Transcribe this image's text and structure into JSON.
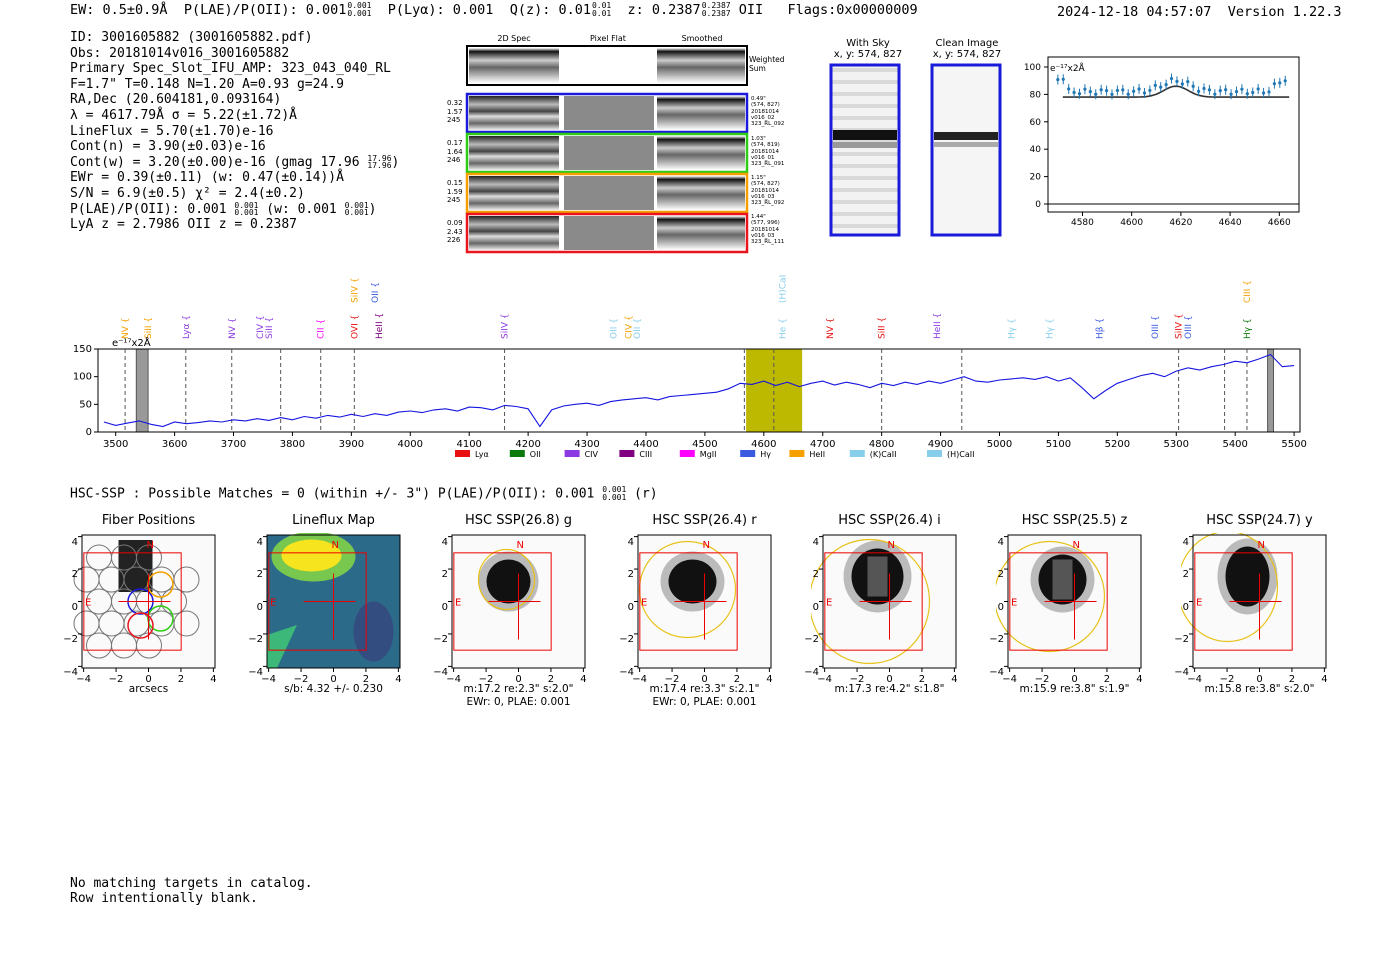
{
  "header": {
    "ew": "EW: 0.5±0.9Å",
    "plae_label": "P(LAE)/P(OII):",
    "plae_val": "0.001",
    "plae_hi": "0.001",
    "plae_lo": "0.001",
    "plya": "P(Lyα): 0.001",
    "qz_label": "Q(z):",
    "qz_val": "0.01",
    "qz_hi": "0.01",
    "qz_lo": "0.01",
    "z_label": "z:",
    "z_val": "0.2387",
    "z_hi": "0.2387",
    "z_lo": "0.2387",
    "z_line": "OII",
    "flags": "Flags:0x00000009",
    "timestamp": "2024-12-18 04:57:07",
    "version": "Version 1.22.3"
  },
  "info": {
    "id": "ID: 3001605882 (3001605882.pdf)",
    "obs": "Obs: 20181014v016_3001605882",
    "primary": "Primary Spec_Slot_IFU_AMP: 323_043_040_RL",
    "fta": "F=1.7\"  T=0.148  N=1.20  A=0.93  g=24.9",
    "radec": "RA,Dec (20.604181,0.093164)",
    "lambda": "λ = 4617.79Å  σ = 5.22(±1.72)Å",
    "lineflux": "LineFlux = 5.70(±1.70)e-16",
    "contn": "Cont(n) = 3.90(±0.03)e-16",
    "contw": "Cont(w) = 3.20(±0.00)e-16 (gmag 17.96",
    "contw_hi": "17.96",
    "contw_lo": "17.96",
    "contw_end": ")",
    "ewr": "EWr = 0.39(±0.11) (w: 0.47(±0.14))Å",
    "sn": "S/N = 6.9(±0.5)  χ² = 2.4(±0.2)",
    "plae_a": "P(LAE)/P(OII): 0.001",
    "plae_hi": "0.001",
    "plae_lo": "0.001",
    "plae_b": "(w: 0.001",
    "plae_b_hi": "0.001",
    "plae_b_lo": "0.001",
    "plae_end": ")",
    "lyaz": "LyA z = 2.7986  OII z = 0.2387"
  },
  "spec2d": {
    "col_labels": [
      "2D Spec",
      "Pixel Flat",
      "Smoothed"
    ],
    "weighted": "Weighted Sum",
    "rows": [
      {
        "a": "0.32",
        "b": "1.57",
        "c": "245",
        "info": [
          "0.49\"",
          "(574, 827)",
          "20181014",
          "v016_02",
          "323_RL_092"
        ],
        "color": "#1a1adb"
      },
      {
        "a": "0.17",
        "b": "1.64",
        "c": "246",
        "info": [
          "1.03\"",
          "(574, 819)",
          "20181014",
          "v016_01",
          "323_RL_091"
        ],
        "color": "#2ecc14"
      },
      {
        "a": "0.15",
        "b": "1.59",
        "c": "245",
        "info": [
          "1.15\"",
          "(574, 827)",
          "20181014",
          "v016_03",
          "323_RL_092"
        ],
        "color": "#f5a000"
      },
      {
        "a": "0.09",
        "b": "2.43",
        "c": "226",
        "info": [
          "1.44\"",
          "(577, 996)",
          "20181014",
          "v016_03",
          "323_RL_111"
        ],
        "color": "#e8141e"
      }
    ]
  },
  "sky": {
    "with_sky": "With Sky",
    "with_sky_xy": "x, y: 574, 827",
    "clean": "Clean Image",
    "clean_xy": "x, y: 574, 827"
  },
  "mini_chart": {
    "exp_label": "e⁻¹⁷x2Å",
    "y_ticks": [
      "0",
      "20",
      "40",
      "60",
      "80",
      "100"
    ],
    "x_ticks": [
      "4580",
      "4600",
      "4620",
      "4640",
      "4660"
    ]
  },
  "chart_data": {
    "type": "line",
    "title": "",
    "ylabel": "e⁻¹⁷x2Å",
    "xlim": [
      3470,
      5510
    ],
    "ylim": [
      0,
      150
    ],
    "x_ticks": [
      3500,
      3600,
      3700,
      3800,
      3900,
      4000,
      4100,
      4200,
      4300,
      4400,
      4500,
      4600,
      4700,
      4800,
      4900,
      5000,
      5100,
      5200,
      5300,
      5400,
      5500
    ],
    "y_ticks": [
      0,
      50,
      100,
      150
    ],
    "x": [
      3480,
      3500,
      3520,
      3540,
      3560,
      3580,
      3600,
      3620,
      3640,
      3660,
      3680,
      3700,
      3720,
      3740,
      3760,
      3780,
      3800,
      3820,
      3840,
      3860,
      3880,
      3900,
      3920,
      3940,
      3960,
      3980,
      4000,
      4020,
      4040,
      4060,
      4080,
      4100,
      4120,
      4140,
      4160,
      4180,
      4200,
      4220,
      4240,
      4260,
      4280,
      4300,
      4320,
      4340,
      4360,
      4380,
      4400,
      4420,
      4440,
      4460,
      4480,
      4500,
      4520,
      4540,
      4560,
      4580,
      4600,
      4620,
      4640,
      4660,
      4680,
      4700,
      4720,
      4740,
      4760,
      4780,
      4800,
      4820,
      4840,
      4860,
      4880,
      4900,
      4920,
      4940,
      4960,
      4980,
      5000,
      5020,
      5040,
      5060,
      5080,
      5100,
      5120,
      5140,
      5160,
      5180,
      5200,
      5220,
      5240,
      5260,
      5280,
      5300,
      5320,
      5340,
      5360,
      5380,
      5400,
      5420,
      5440,
      5460,
      5480,
      5500
    ],
    "y": [
      18,
      12,
      16,
      20,
      14,
      10,
      18,
      15,
      17,
      20,
      18,
      22,
      20,
      24,
      21,
      26,
      22,
      28,
      25,
      30,
      27,
      32,
      28,
      33,
      30,
      36,
      38,
      35,
      40,
      42,
      38,
      45,
      44,
      40,
      48,
      46,
      42,
      10,
      40,
      47,
      50,
      52,
      48,
      55,
      58,
      60,
      62,
      58,
      64,
      66,
      68,
      70,
      72,
      78,
      88,
      86,
      92,
      84,
      90,
      82,
      88,
      92,
      85,
      90,
      86,
      80,
      88,
      84,
      90,
      86,
      92,
      88,
      94,
      100,
      92,
      90,
      94,
      96,
      98,
      95,
      100,
      92,
      98,
      80,
      60,
      75,
      88,
      95,
      102,
      106,
      100,
      110,
      116,
      112,
      118,
      122,
      128,
      125,
      132,
      140,
      118,
      120
    ],
    "shaded_regions": [
      [
        4570,
        4665
      ]
    ],
    "masked_regions": [
      [
        3535,
        3555
      ],
      [
        5455,
        5465
      ]
    ],
    "vlines": [
      3516,
      3619,
      3697,
      3780,
      3848,
      3905,
      4160,
      4567,
      4617,
      4800,
      4936,
      5304,
      5382,
      5420
    ],
    "legend": [
      "Lyα",
      "OII",
      "CIV",
      "CIII",
      "MgII",
      "Hγ",
      "HeII",
      "(K)CaII",
      "(H)CaII"
    ],
    "legend_colors": [
      "#e81010",
      "#0a7a0a",
      "#8a3ae0",
      "#800080",
      "#ff00ff",
      "#3a5ae0",
      "#f5a000",
      "#87ceeb",
      "#87ceeb"
    ],
    "line_labels": [
      {
        "name": "NV",
        "color": "#f5a000",
        "x": 3516
      },
      {
        "name": "SiII",
        "color": "#f5a000",
        "x": 3555
      },
      {
        "name": "Lyα",
        "color": "#8a3ae0",
        "x": 3619
      },
      {
        "name": "NV",
        "color": "#8a3ae0",
        "x": 3697
      },
      {
        "name": "CIV",
        "color": "#8a3ae0",
        "x": 3745
      },
      {
        "name": "SiII",
        "color": "#8a3ae0",
        "x": 3760
      },
      {
        "name": "CII",
        "color": "#ff00ff",
        "x": 3848
      },
      {
        "name": "OVI",
        "color": "#e81010",
        "x": 3905
      },
      {
        "name": "HeII",
        "color": "#800080",
        "x": 3947
      },
      {
        "name": "SiIV",
        "color": "#8a3ae0",
        "x": 4160
      },
      {
        "name": "OII",
        "color": "#87ceeb",
        "x": 4345
      },
      {
        "name": "CIV",
        "color": "#f5a000",
        "x": 4370
      },
      {
        "name": "OII",
        "color": "#87ceeb",
        "x": 4385
      },
      {
        "name": "He",
        "color": "#87ceeb",
        "x": 4632
      },
      {
        "name": "NV",
        "color": "#e81010",
        "x": 4712
      },
      {
        "name": "SiII",
        "color": "#e81010",
        "x": 4800
      },
      {
        "name": "HeII",
        "color": "#8a3ae0",
        "x": 4894
      },
      {
        "name": "Hγ",
        "color": "#87ceeb",
        "x": 5020
      },
      {
        "name": "Hγ",
        "color": "#87ceeb",
        "x": 5085
      },
      {
        "name": "Hβ",
        "color": "#3a5ae0",
        "x": 5170
      },
      {
        "name": "OIII",
        "color": "#3a5ae0",
        "x": 5264
      },
      {
        "name": "SiIV",
        "color": "#e81010",
        "x": 5304
      },
      {
        "name": "OIII",
        "color": "#3a5ae0",
        "x": 5320
      },
      {
        "name": "Hγ",
        "color": "#0a7a0a",
        "x": 5420
      }
    ],
    "upper_labels": [
      {
        "name": "SiIV",
        "color": "#f5a000",
        "x": 3905
      },
      {
        "name": "OII",
        "color": "#3a5ae0",
        "x": 3940
      },
      {
        "name": "(H)CaII",
        "color": "#87ceeb",
        "x": 4632
      },
      {
        "name": "CIII",
        "color": "#f5a000",
        "x": 5420
      }
    ],
    "exp_label": "e⁻¹⁷x2Å"
  },
  "hsc": {
    "title": "HSC-SSP : Possible Matches = 0 (within +/- 3\")  P(LAE)/P(OII): 0.001",
    "plae_hi": "0.001",
    "plae_lo": "0.001",
    "band": "(r)",
    "tick_x": [
      "−4",
      "−2",
      "0",
      "2",
      "4"
    ],
    "tick_y": [
      "4",
      "2",
      "0",
      "−2",
      "−4"
    ],
    "compass_n": "N",
    "compass_e": "E",
    "panels": [
      {
        "title": "Fiber Positions",
        "sub1": "arcsecs",
        "sub2": ""
      },
      {
        "title": "Lineflux Map",
        "sub1": "s/b: 4.32 +/- 0.230",
        "sub2": ""
      },
      {
        "title": "HSC SSP(26.8) g",
        "sub1": "m:17.2  re:2.3\"  s:2.0\"",
        "sub2": "EWr: 0, PLAE: 0.001"
      },
      {
        "title": "HSC SSP(26.4) r",
        "sub1": "m:17.4  re:3.3\"  s:2.1\"",
        "sub2": "EWr: 0, PLAE: 0.001"
      },
      {
        "title": "HSC SSP(26.4) i",
        "sub1": "m:17.3  re:4.2\"  s:1.8\"",
        "sub2": ""
      },
      {
        "title": "HSC SSP(25.5) z",
        "sub1": "m:15.9  re:3.8\"  s:1.9\"",
        "sub2": ""
      },
      {
        "title": "HSC SSP(24.7) y",
        "sub1": "m:15.8  re:3.8\"  s:2.0\"",
        "sub2": ""
      }
    ]
  },
  "footer": {
    "line1": "No matching targets in catalog.",
    "line2": "Row intentionally blank."
  }
}
